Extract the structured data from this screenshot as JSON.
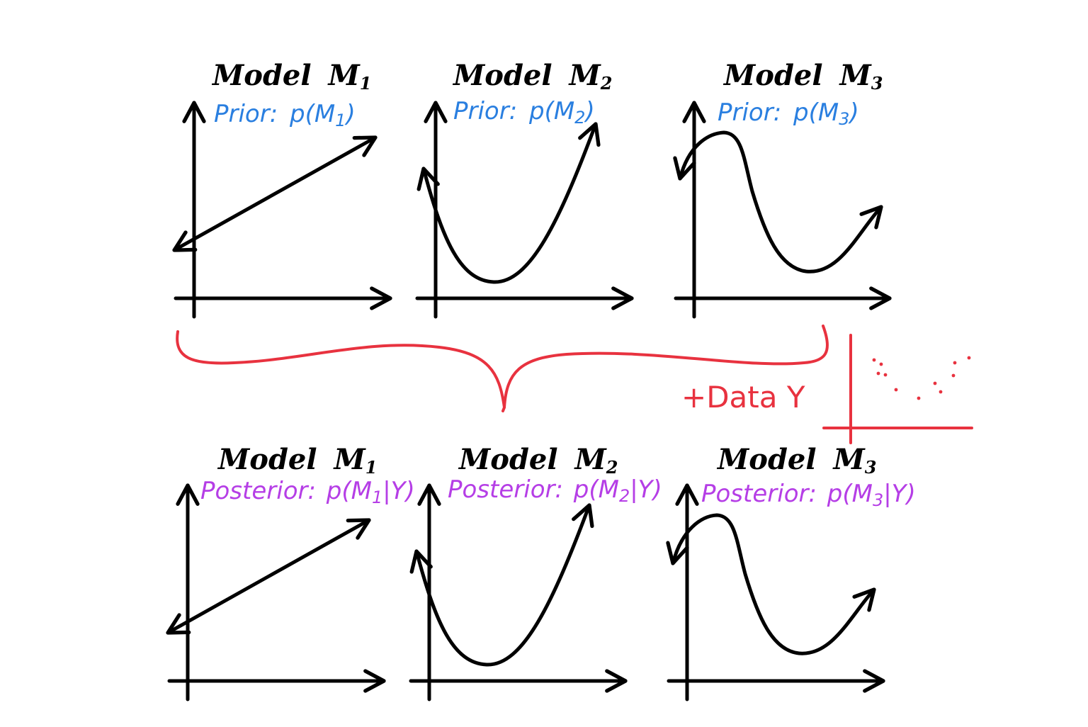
{
  "colors": {
    "ink": "#000000",
    "prior": "#2a7fe0",
    "posterior": "#b53ee6",
    "data": "#e8323f"
  },
  "prior_row": {
    "label_prefix": "Prior:",
    "panels": [
      {
        "title": "Model",
        "symbol": "M",
        "index": "1",
        "label_expr": "p(M",
        "label_index": "1",
        "label_end": ")",
        "curve": "line"
      },
      {
        "title": "Model",
        "symbol": "M",
        "index": "2",
        "label_expr": "p(M",
        "label_index": "2",
        "label_end": ")",
        "curve": "parabola"
      },
      {
        "title": "Model",
        "symbol": "M",
        "index": "3",
        "label_expr": "p(M",
        "label_index": "3",
        "label_end": ")",
        "curve": "wave"
      }
    ]
  },
  "posterior_row": {
    "label_prefix": "Posterior:",
    "panels": [
      {
        "title": "Model",
        "symbol": "M",
        "index": "1",
        "label_expr": "p(M",
        "label_index": "1",
        "label_end": "|Y)",
        "curve": "line"
      },
      {
        "title": "Model",
        "symbol": "M",
        "index": "2",
        "label_expr": "p(M",
        "label_index": "2",
        "label_end": "|Y)",
        "curve": "parabola"
      },
      {
        "title": "Model",
        "symbol": "M",
        "index": "3",
        "label_expr": "p(M",
        "label_index": "3",
        "label_end": "|Y)",
        "curve": "wave"
      }
    ]
  },
  "data_annotation": {
    "text": "+Data Y",
    "icon": "scatter-plot-icon"
  }
}
